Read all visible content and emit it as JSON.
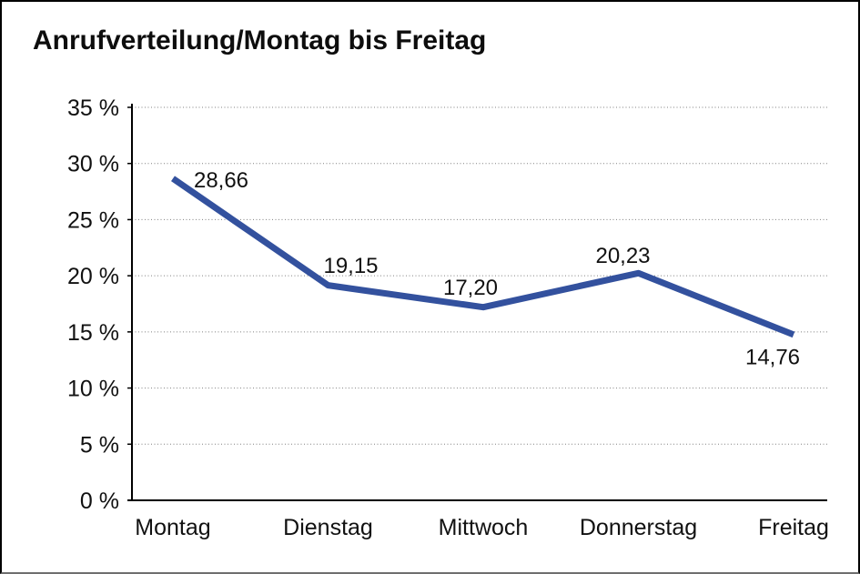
{
  "window": {
    "background_color": "#ffffff",
    "border_color": "#000000"
  },
  "chart_data": {
    "type": "line",
    "title": "Anrufverteilung/Montag bis Freitag",
    "categories": [
      "Montag",
      "Dienstag",
      "Mittwoch",
      "Donnerstag",
      "Freitag"
    ],
    "series": [
      {
        "name": "Anrufverteilung",
        "values": [
          28.66,
          19.15,
          17.2,
          20.23,
          14.76
        ]
      }
    ],
    "point_labels": [
      "28,66",
      "19,15",
      "17,20",
      "20,23",
      "14,76"
    ],
    "point_label_placements": [
      "right-of-point",
      "above-point",
      "above-left-of-point",
      "above-left-of-point",
      "below-left-of-point"
    ],
    "y_ticks_top_to_bottom": [
      "35 %",
      "30 %",
      "25 %",
      "20 %",
      "15 %",
      "10 %",
      "5 %",
      "0 %"
    ],
    "ylim": [
      0,
      35
    ],
    "y_step": 5,
    "xlabel": "",
    "ylabel": "",
    "grid": "horizontal-dotted",
    "legend": "none",
    "line_color": "#33519e",
    "grid_color": "#808080",
    "axis_color": "#000000",
    "text_color": "#111111"
  }
}
